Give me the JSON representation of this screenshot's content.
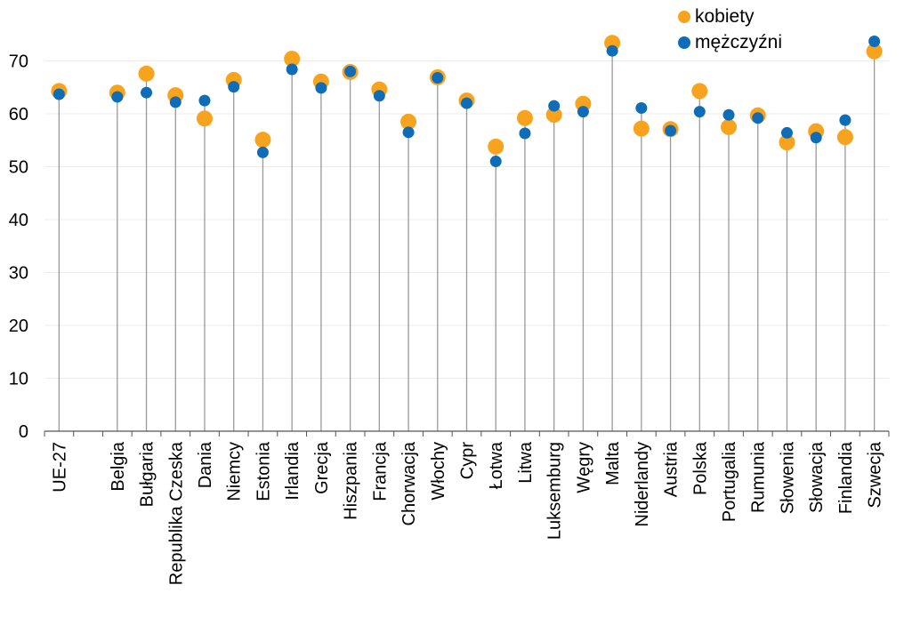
{
  "colors": {
    "kobiety": "#F8A31E",
    "mezczyzni": "#0F6DB8",
    "stem": "#9a9a9a",
    "grid": "#ececec",
    "axis": "#555555"
  },
  "legend": {
    "items": [
      {
        "label": "kobiety",
        "color": "#F8A31E"
      },
      {
        "label": "mężczyźni",
        "color": "#0F6DB8"
      }
    ],
    "placement": "top-right"
  },
  "chart_data": {
    "type": "scatter",
    "subtype": "dot-plot",
    "title": "",
    "xlabel": "",
    "ylabel": "",
    "ylim": [
      0,
      75
    ],
    "yticks": [
      0,
      10,
      20,
      30,
      40,
      50,
      60,
      70
    ],
    "grid": true,
    "categories": [
      "UE-27",
      "",
      "Belgia",
      "Bułgaria",
      "Republika Czeska",
      "Dania",
      "Niemcy",
      "Estonia",
      "Irlandia",
      "Grecja",
      "Hiszpania",
      "Francja",
      "Chorwacja",
      "Włochy",
      "Cypr",
      "Łotwa",
      "Litwa",
      "Luksemburg",
      "Węgry",
      "Malta",
      "Niderlandy",
      "Austria",
      "Polska",
      "Portugalia",
      "Rumunia",
      "Słowenia",
      "Słowacja",
      "Finlandia",
      "Szwecja"
    ],
    "series": [
      {
        "name": "kobiety",
        "color": "#F8A31E",
        "values": [
          64.3,
          null,
          64.0,
          67.6,
          63.5,
          59.1,
          66.4,
          55.1,
          70.4,
          66.1,
          67.9,
          64.6,
          58.5,
          66.9,
          62.5,
          53.8,
          59.2,
          59.8,
          61.9,
          73.4,
          57.2,
          57.1,
          64.3,
          57.5,
          59.7,
          54.6,
          56.7,
          55.6,
          71.8
        ]
      },
      {
        "name": "mężczyźni",
        "color": "#0F6DB8",
        "values": [
          63.7,
          null,
          63.2,
          64.0,
          62.2,
          62.5,
          65.1,
          52.7,
          68.4,
          64.9,
          68.0,
          63.4,
          56.5,
          66.8,
          62.0,
          51.0,
          56.3,
          61.5,
          60.4,
          71.9,
          61.1,
          56.8,
          60.4,
          59.8,
          59.2,
          56.4,
          55.5,
          58.8,
          73.7
        ]
      }
    ]
  }
}
